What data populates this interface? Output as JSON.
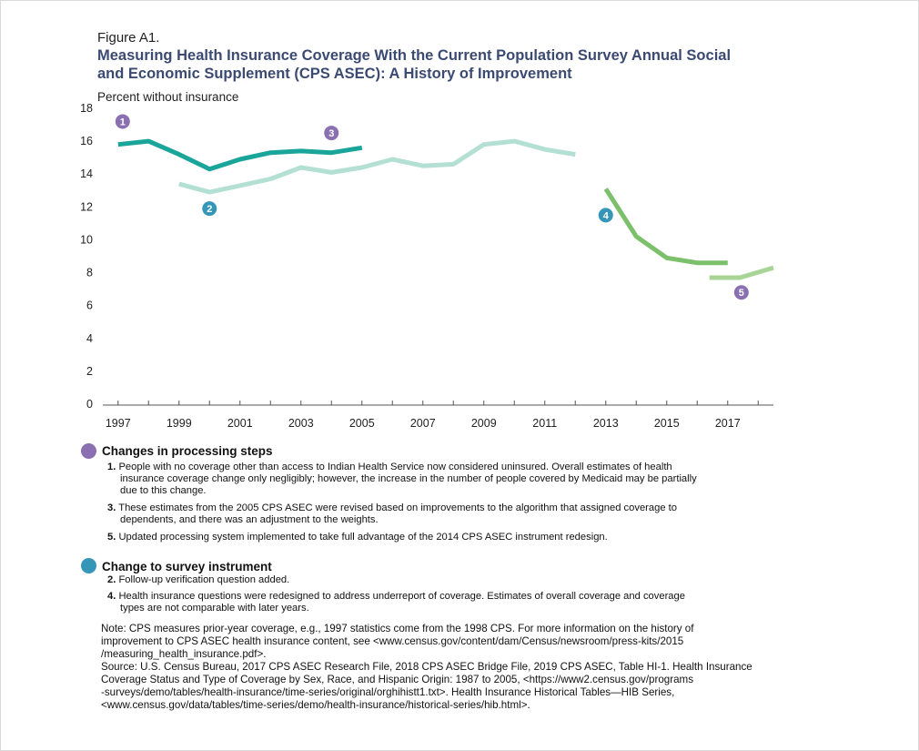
{
  "figure": {
    "label": "Figure A1.",
    "title": "Measuring Health Insurance Coverage With the Current Population Survey Annual Social and Economic Supplement (CPS ASEC): A History of Improvement",
    "ylabel": "Percent without insurance"
  },
  "chart_data": {
    "type": "line",
    "ylabel": "Percent without insurance",
    "ylim": [
      0,
      18
    ],
    "xlim": [
      1996.5,
      2018.5
    ],
    "yticks": [
      0,
      2,
      4,
      6,
      8,
      10,
      12,
      14,
      16,
      18
    ],
    "xticklabels": [
      "1997",
      "1999",
      "2001",
      "2003",
      "2005",
      "2007",
      "2009",
      "2011",
      "2013",
      "2015",
      "2017"
    ],
    "grid": false,
    "series": [
      {
        "color": "#1aa59a",
        "points": [
          [
            1997,
            15.8
          ],
          [
            1998,
            16.0
          ],
          [
            1999,
            15.2
          ],
          [
            2000,
            14.3
          ],
          [
            2001,
            14.9
          ],
          [
            2002,
            15.3
          ],
          [
            2003,
            15.4
          ],
          [
            2004,
            15.3
          ],
          [
            2005,
            15.6
          ]
        ]
      },
      {
        "color": "#b3e0d2",
        "points": [
          [
            1999,
            13.4
          ],
          [
            2000,
            12.9
          ],
          [
            2001,
            13.3
          ],
          [
            2002,
            13.7
          ],
          [
            2003,
            14.4
          ],
          [
            2004,
            14.1
          ],
          [
            2005,
            14.4
          ],
          [
            2006,
            14.9
          ],
          [
            2007,
            14.5
          ],
          [
            2008,
            14.6
          ],
          [
            2009,
            15.8
          ],
          [
            2010,
            16.0
          ],
          [
            2011,
            15.5
          ],
          [
            2012,
            15.2
          ]
        ]
      },
      {
        "color": "#7cc06b",
        "points": [
          [
            2013,
            13.1
          ],
          [
            2014,
            10.2
          ],
          [
            2015,
            8.9
          ],
          [
            2016,
            8.6
          ],
          [
            2017,
            8.6
          ]
        ]
      },
      {
        "color": "#a8d596",
        "points": [
          [
            2016.4,
            7.7
          ],
          [
            2017.4,
            7.7
          ],
          [
            2018.5,
            8.3
          ]
        ]
      }
    ],
    "markers": [
      {
        "label": "1",
        "kind": "processing",
        "x": 1997.15,
        "y": 17.2
      },
      {
        "label": "2",
        "kind": "instrument",
        "x": 2000.0,
        "y": 11.9
      },
      {
        "label": "3",
        "kind": "processing",
        "x": 2004.0,
        "y": 16.5
      },
      {
        "label": "4",
        "kind": "instrument",
        "x": 2013.0,
        "y": 11.5
      },
      {
        "label": "5",
        "kind": "processing",
        "x": 2017.45,
        "y": 6.8
      }
    ],
    "marker_colors": {
      "processing": "#8a70b0",
      "instrument": "#3596b8"
    }
  },
  "legend": {
    "processing": {
      "title": "Changes in processing steps",
      "items": [
        {
          "num": "1.",
          "lines": [
            "People with no coverage other than access to Indian Health Service now considered uninsured. Overall estimates of health",
            "insurance coverage change only negligibly; however, the increase in the number of people covered by Medicaid may be partially",
            "due to this change."
          ]
        },
        {
          "num": "3.",
          "lines": [
            "These estimates from the 2005 CPS ASEC were revised based on improvements to the algorithm that assigned coverage to",
            "dependents, and there was an adjustment to the weights."
          ]
        },
        {
          "num": "5.",
          "lines": [
            "Updated processing system implemented to take full advantage of the 2014 CPS ASEC instrument redesign."
          ]
        }
      ]
    },
    "instrument": {
      "title": "Change to survey instrument",
      "items": [
        {
          "num": "2.",
          "lines": [
            "Follow-up verification question added."
          ]
        },
        {
          "num": "4.",
          "lines": [
            "Health insurance questions were redesigned to address underreport of coverage. Estimates of overall coverage and coverage",
            "types are not comparable with later years."
          ]
        }
      ]
    }
  },
  "notes": {
    "note_lines": [
      "Note: CPS measures prior-year coverage, e.g., 1997 statistics come from the 1998 CPS. For more information on the history of",
      "improvement to CPS ASEC health insurance content, see <www.census.gov/content/dam/Census/newsroom/press-kits/2015",
      "/measuring_health_insurance.pdf>."
    ],
    "source_lines": [
      "Source: U.S. Census Bureau, 2017 CPS ASEC Research File, 2018 CPS ASEC Bridge File, 2019 CPS ASEC, Table HI-1. Health Insurance",
      "Coverage Status and Type of Coverage by Sex, Race, and Hispanic Origin: 1987 to 2005, <https://www2.census.gov/programs",
      "-surveys/demo/tables/health-insurance/time-series/original/orghihistt1.txt>. Health Insurance Historical Tables—HIB Series,",
      "<www.census.gov/data/tables/time-series/demo/health-insurance/historical-series/hib.html>."
    ]
  }
}
